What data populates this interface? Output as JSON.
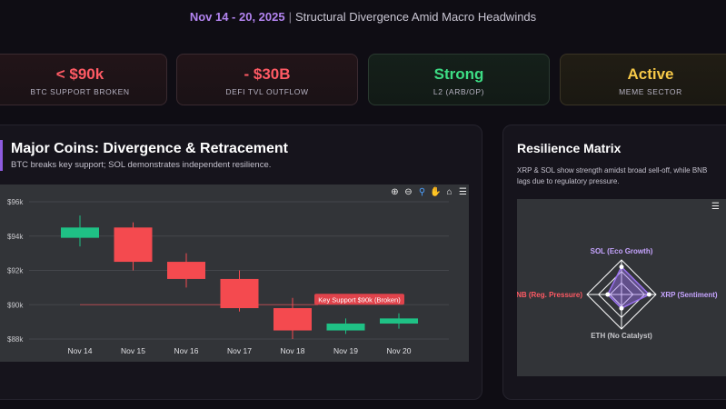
{
  "header": {
    "date": "Nov 14 - 20, 2025",
    "separator": "|",
    "title": "Structural Divergence Amid Macro Headwinds"
  },
  "kpis": [
    {
      "value": "< $90k",
      "label": "BTC SUPPORT BROKEN",
      "color": "#ff5a64"
    },
    {
      "value": "- $30B",
      "label": "DEFI TVL OUTFLOW",
      "color": "#ff5a64"
    },
    {
      "value": "Strong",
      "label": "L2 (ARB/OP)",
      "color": "#3ddc84"
    },
    {
      "value": "Active",
      "label": "MEME SECTOR",
      "color": "#f7c948"
    }
  ],
  "main_panel": {
    "title": "Major Coins: Divergence & Retracement",
    "subtitle": "BTC breaks key support; SOL demonstrates independent resilience."
  },
  "side_panel": {
    "title": "Resilience Matrix",
    "subtitle": "XRP & SOL show strength amidst broad sell-off, while BNB lags due to regulatory pressure."
  },
  "toolbar": {
    "icons": [
      "zoom-in-icon",
      "zoom-out-icon",
      "zoom-select-icon",
      "pan-icon",
      "home-icon",
      "menu-icon"
    ]
  },
  "chart_data": [
    {
      "type": "candlestick",
      "categories": [
        "Nov 14",
        "Nov 15",
        "Nov 16",
        "Nov 17",
        "Nov 18",
        "Nov 19",
        "Nov 20"
      ],
      "candles": [
        {
          "x": "Nov 14",
          "open": 93.9,
          "high": 95.2,
          "low": 93.4,
          "close": 94.5
        },
        {
          "x": "Nov 15",
          "open": 94.5,
          "high": 94.8,
          "low": 92.0,
          "close": 92.5
        },
        {
          "x": "Nov 16",
          "open": 92.5,
          "high": 93.0,
          "low": 91.0,
          "close": 91.5
        },
        {
          "x": "Nov 17",
          "open": 91.5,
          "high": 92.0,
          "low": 89.6,
          "close": 89.8
        },
        {
          "x": "Nov 18",
          "open": 89.8,
          "high": 90.4,
          "low": 88.0,
          "close": 88.5
        },
        {
          "x": "Nov 19",
          "open": 88.5,
          "high": 89.2,
          "low": 88.3,
          "close": 88.9
        },
        {
          "x": "Nov 20",
          "open": 88.9,
          "high": 89.5,
          "low": 88.6,
          "close": 89.2
        }
      ],
      "y_ticks": [
        "$96k",
        "$94k",
        "$92k",
        "$90k",
        "$88k"
      ],
      "ylim": [
        88,
        96
      ],
      "annotation": {
        "label": "Key Support $90k (Broken)",
        "y": 90
      },
      "colors": {
        "up": "#1fc185",
        "down": "#f44a4f"
      }
    },
    {
      "type": "radar",
      "axes": [
        "SOL (Eco Growth)",
        "XRP (Sentiment)",
        "ETH (No Catalyst)",
        "BNB (Reg. Pressure)"
      ],
      "scale_max": 100,
      "values": [
        80,
        80,
        40,
        40
      ],
      "colors": {
        "fill": "#9b72f0",
        "grid": "#ffffff"
      }
    }
  ]
}
